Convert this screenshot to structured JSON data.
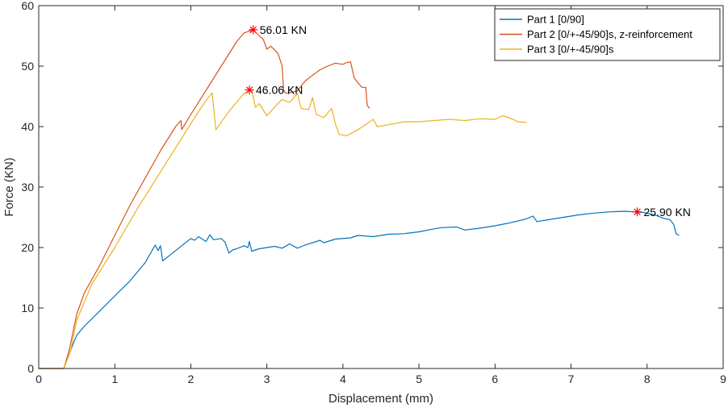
{
  "chart_data": {
    "type": "line",
    "xlabel": "Displacement (mm)",
    "ylabel": "Force (KN)",
    "xlim": [
      0,
      9
    ],
    "ylim": [
      0,
      60
    ],
    "xticks": [
      0,
      1,
      2,
      3,
      4,
      5,
      6,
      7,
      8,
      9
    ],
    "yticks": [
      0,
      10,
      20,
      30,
      40,
      50,
      60
    ],
    "xtick_labels": [
      "0",
      "1",
      "2",
      "3",
      "4",
      "5",
      "6",
      "7",
      "8",
      "9"
    ],
    "ytick_labels": [
      "0",
      "10",
      "20",
      "30",
      "40",
      "50",
      "60"
    ],
    "grid": false,
    "legend_position": "top-right",
    "series": [
      {
        "name": "Part 1 [0/90]",
        "color": "#0072BD",
        "points": [
          [
            0,
            0
          ],
          [
            0.33,
            0
          ],
          [
            0.45,
            4
          ],
          [
            0.5,
            5.5
          ],
          [
            0.6,
            7
          ],
          [
            0.8,
            9.5
          ],
          [
            1.0,
            12
          ],
          [
            1.2,
            14.5
          ],
          [
            1.4,
            17.5
          ],
          [
            1.53,
            20.4
          ],
          [
            1.57,
            19.5
          ],
          [
            1.6,
            20.3
          ],
          [
            1.63,
            17.8
          ],
          [
            1.7,
            18.5
          ],
          [
            1.9,
            20.5
          ],
          [
            2.0,
            21.5
          ],
          [
            2.05,
            21.2
          ],
          [
            2.1,
            21.8
          ],
          [
            2.2,
            21.0
          ],
          [
            2.25,
            22.1
          ],
          [
            2.3,
            21.3
          ],
          [
            2.4,
            21.5
          ],
          [
            2.45,
            20.9
          ],
          [
            2.5,
            19.1
          ],
          [
            2.55,
            19.6
          ],
          [
            2.6,
            19.8
          ],
          [
            2.7,
            20.3
          ],
          [
            2.75,
            20.0
          ],
          [
            2.77,
            21.0
          ],
          [
            2.8,
            19.4
          ],
          [
            2.9,
            19.8
          ],
          [
            3.0,
            20.0
          ],
          [
            3.1,
            20.2
          ],
          [
            3.2,
            19.9
          ],
          [
            3.3,
            20.6
          ],
          [
            3.4,
            19.9
          ],
          [
            3.5,
            20.4
          ],
          [
            3.7,
            21.2
          ],
          [
            3.75,
            20.8
          ],
          [
            3.9,
            21.4
          ],
          [
            4.1,
            21.6
          ],
          [
            4.2,
            22.0
          ],
          [
            4.4,
            21.8
          ],
          [
            4.6,
            22.2
          ],
          [
            4.8,
            22.3
          ],
          [
            5.0,
            22.6
          ],
          [
            5.2,
            23.1
          ],
          [
            5.3,
            23.3
          ],
          [
            5.5,
            23.4
          ],
          [
            5.6,
            22.9
          ],
          [
            5.8,
            23.2
          ],
          [
            6.0,
            23.6
          ],
          [
            6.2,
            24.1
          ],
          [
            6.4,
            24.7
          ],
          [
            6.5,
            25.2
          ],
          [
            6.55,
            24.3
          ],
          [
            6.7,
            24.6
          ],
          [
            6.9,
            25.0
          ],
          [
            7.1,
            25.4
          ],
          [
            7.3,
            25.7
          ],
          [
            7.5,
            25.9
          ],
          [
            7.7,
            26.0
          ],
          [
            7.85,
            25.9
          ],
          [
            7.95,
            25.8
          ],
          [
            8.1,
            25.4
          ],
          [
            8.2,
            24.9
          ],
          [
            8.3,
            24.6
          ],
          [
            8.35,
            23.8
          ],
          [
            8.38,
            22.3
          ],
          [
            8.42,
            22.0
          ]
        ]
      },
      {
        "name": "Part 2 [0/+-45/90]s, z-reinforcement",
        "color": "#D95319",
        "points": [
          [
            0,
            0
          ],
          [
            0.33,
            0
          ],
          [
            0.4,
            3
          ],
          [
            0.5,
            9
          ],
          [
            0.6,
            12.5
          ],
          [
            0.8,
            17
          ],
          [
            1.0,
            22
          ],
          [
            1.2,
            27
          ],
          [
            1.4,
            31.5
          ],
          [
            1.6,
            36
          ],
          [
            1.8,
            40
          ],
          [
            1.87,
            41.0
          ],
          [
            1.88,
            39.5
          ],
          [
            2.0,
            42
          ],
          [
            2.2,
            46
          ],
          [
            2.3,
            48
          ],
          [
            2.4,
            50
          ],
          [
            2.5,
            52
          ],
          [
            2.6,
            54
          ],
          [
            2.7,
            55.5
          ],
          [
            2.82,
            56.0
          ],
          [
            2.9,
            55.0
          ],
          [
            2.95,
            54.5
          ],
          [
            3.0,
            52.8
          ],
          [
            3.05,
            53.3
          ],
          [
            3.1,
            52.7
          ],
          [
            3.15,
            52.0
          ],
          [
            3.2,
            50.0
          ],
          [
            3.22,
            46.0
          ],
          [
            3.25,
            45.5
          ],
          [
            3.4,
            45.9
          ],
          [
            3.5,
            47.5
          ],
          [
            3.6,
            48.5
          ],
          [
            3.7,
            49.4
          ],
          [
            3.8,
            50.0
          ],
          [
            3.9,
            50.5
          ],
          [
            4.0,
            50.3
          ],
          [
            4.05,
            50.6
          ],
          [
            4.1,
            50.7
          ],
          [
            4.15,
            48.0
          ],
          [
            4.2,
            47.2
          ],
          [
            4.25,
            46.5
          ],
          [
            4.3,
            46.5
          ],
          [
            4.32,
            43.5
          ],
          [
            4.35,
            43.0
          ]
        ]
      },
      {
        "name": "Part 3 [0/+-45/90]s",
        "color": "#EDB120",
        "points": [
          [
            0,
            0
          ],
          [
            0.33,
            0
          ],
          [
            0.42,
            3
          ],
          [
            0.5,
            8
          ],
          [
            0.7,
            14
          ],
          [
            1.0,
            20
          ],
          [
            1.3,
            26.5
          ],
          [
            1.6,
            32.5
          ],
          [
            1.9,
            38.5
          ],
          [
            2.1,
            42.5
          ],
          [
            2.2,
            44.3
          ],
          [
            2.28,
            45.6
          ],
          [
            2.33,
            39.5
          ],
          [
            2.5,
            42.5
          ],
          [
            2.7,
            45.5
          ],
          [
            2.8,
            46.1
          ],
          [
            2.85,
            43.2
          ],
          [
            2.9,
            43.8
          ],
          [
            3.0,
            41.8
          ],
          [
            3.1,
            43.2
          ],
          [
            3.2,
            44.5
          ],
          [
            3.3,
            44.0
          ],
          [
            3.4,
            45.5
          ],
          [
            3.45,
            43.0
          ],
          [
            3.55,
            42.8
          ],
          [
            3.6,
            44.8
          ],
          [
            3.65,
            42.0
          ],
          [
            3.75,
            41.5
          ],
          [
            3.85,
            43.0
          ],
          [
            3.9,
            40.5
          ],
          [
            3.95,
            38.7
          ],
          [
            4.05,
            38.5
          ],
          [
            4.2,
            39.5
          ],
          [
            4.4,
            41.2
          ],
          [
            4.45,
            40.0
          ],
          [
            4.6,
            40.3
          ],
          [
            4.8,
            40.8
          ],
          [
            5.0,
            40.8
          ],
          [
            5.2,
            41.0
          ],
          [
            5.4,
            41.2
          ],
          [
            5.6,
            41.0
          ],
          [
            5.8,
            41.3
          ],
          [
            6.0,
            41.2
          ],
          [
            6.1,
            41.8
          ],
          [
            6.2,
            41.4
          ],
          [
            6.3,
            40.8
          ],
          [
            6.42,
            40.7
          ]
        ]
      }
    ],
    "annotations": [
      {
        "x": 2.82,
        "y": 56.01,
        "label": "56.01 KN",
        "series": "Part 2 [0/+-45/90]s, z-reinforcement"
      },
      {
        "x": 2.77,
        "y": 46.06,
        "label": "46.06 KN",
        "series": "Part 3 [0/+-45/90]s"
      },
      {
        "x": 7.87,
        "y": 25.9,
        "label": "25.90 KN",
        "series": "Part 1 [0/90]"
      }
    ],
    "annotation_marker": "asterisk",
    "annotation_color": "#FF0000"
  }
}
